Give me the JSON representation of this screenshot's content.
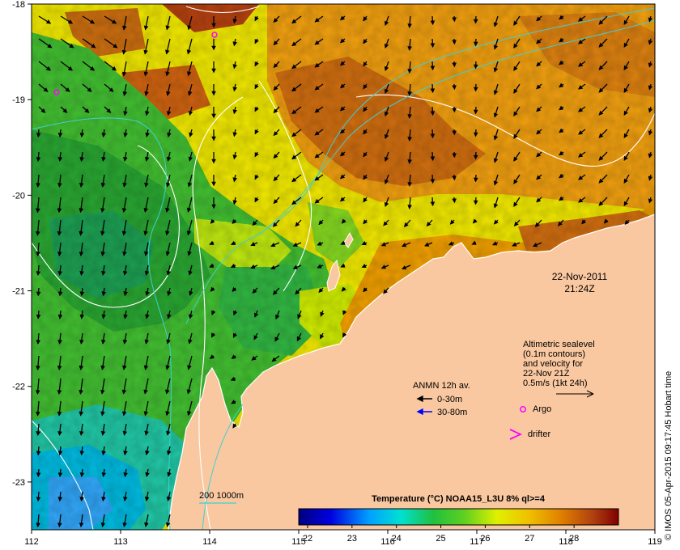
{
  "map": {
    "lon_range": [
      112,
      119
    ],
    "lat_range": [
      -23.5,
      -18
    ],
    "lon_ticks": [
      "112",
      "113",
      "114",
      "115",
      "116",
      "117",
      "118",
      "119"
    ],
    "lat_ticks": [
      "-18",
      "-19",
      "-20",
      "-21",
      "-22",
      "-23"
    ],
    "lat_tick_values": [
      -18,
      -19,
      -20,
      -21,
      -22,
      -23
    ]
  },
  "timestamp": {
    "date": "22-Nov-2011",
    "time": "21:24Z"
  },
  "altimetry_note": [
    "Altimetric sealevel",
    "(0.1m contours)",
    "and velocity for",
    "22-Nov 21Z",
    "0.5m/s (1kt 24h)"
  ],
  "anmn_legend": {
    "title": "ANMN 12h av.",
    "items": [
      {
        "label": "0-30m",
        "color": "#000000"
      },
      {
        "label": "30-80m",
        "color": "#0000ff"
      }
    ]
  },
  "markers": {
    "argo_label": "Argo",
    "argo_color": "#ff00ff",
    "drifter_label": "drifter",
    "drifter_color": "#ff00ff"
  },
  "isobath_label": "200  1000m",
  "isobath_color": "#40d0d0",
  "colorbar": {
    "title": "Temperature (°C) NOAA15_L3U 8% ql>=4",
    "ticks": [
      "22",
      "23",
      "24",
      "25",
      "26",
      "27",
      "28"
    ],
    "tick_values": [
      22,
      23,
      24,
      25,
      26,
      27,
      28
    ],
    "range": [
      21.8,
      29
    ]
  },
  "credit": "© IMOS 05-Apr-2015 09:17:45 Hobart time",
  "land_color": "#f9c8a0"
}
